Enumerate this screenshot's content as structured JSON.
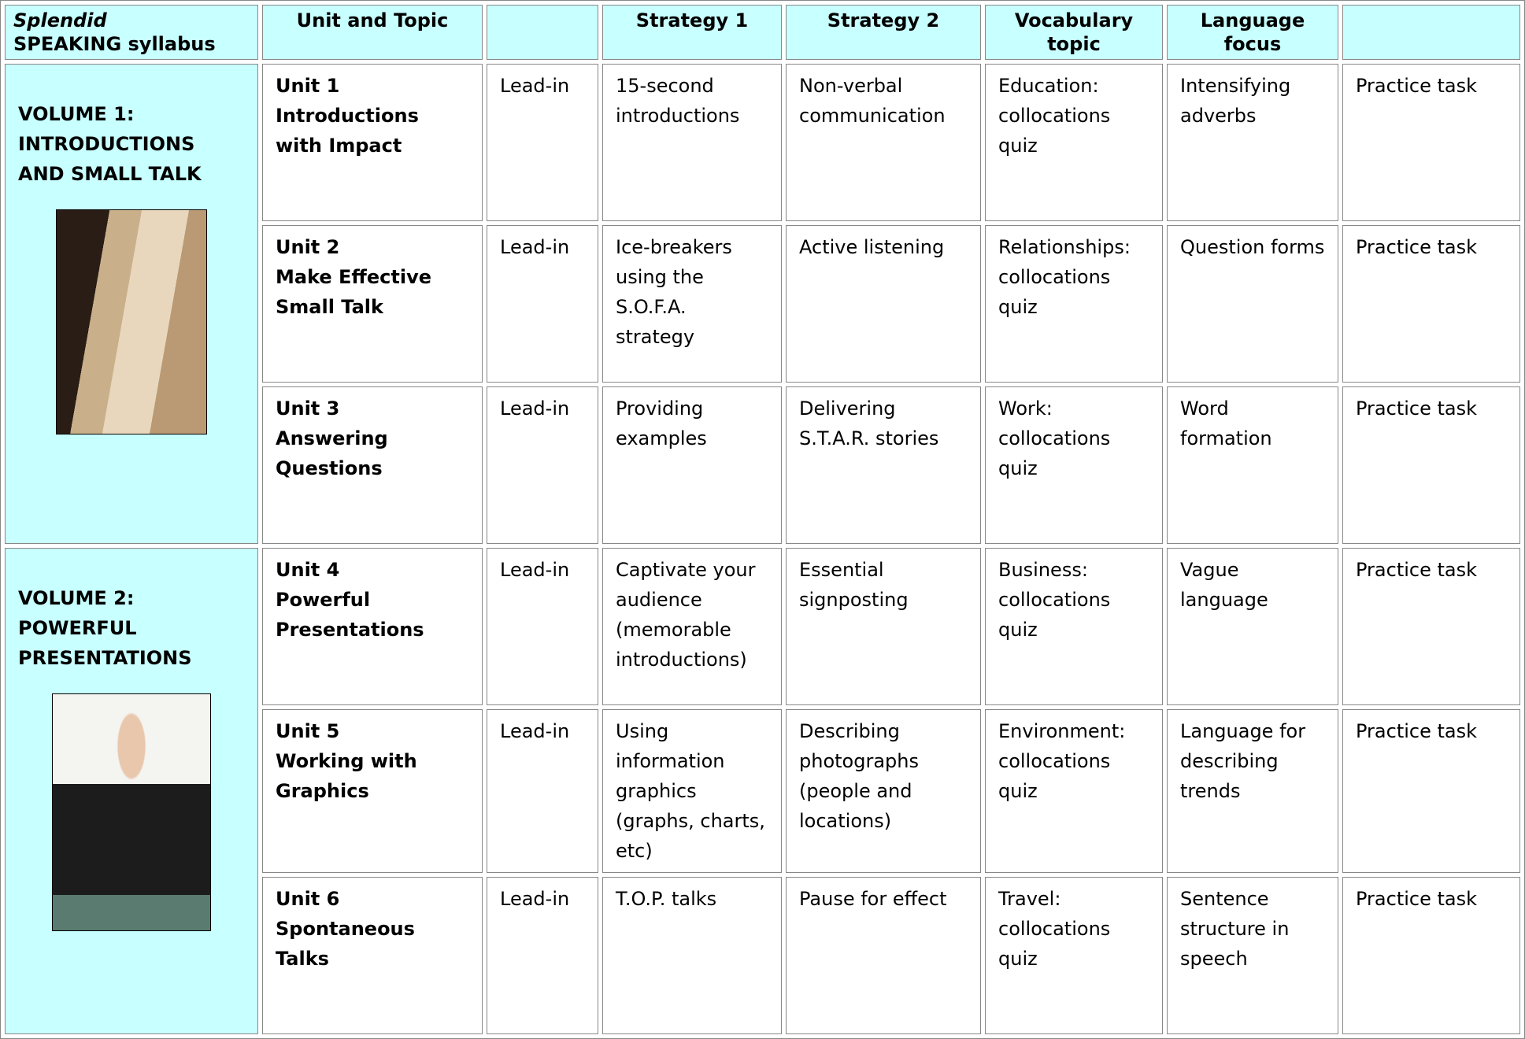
{
  "table": {
    "header": {
      "brand": "Splendid",
      "title": "SPEAKING syllabus",
      "columns": [
        "Unit and Topic",
        "Strategy 1",
        "Strategy 2",
        "Vocabulary topic",
        "Language focus"
      ]
    },
    "volumes": [
      {
        "label": "VOLUME 1: INTRODUCTIONS AND SMALL TALK",
        "units": [
          {
            "unit": "Unit 1",
            "topic": "Introductions with Impact",
            "lead": "Lead-in",
            "strategy_1": "15-second introductions",
            "strategy_2": "Non-verbal communication",
            "vocabulary": "Education: collocations quiz",
            "language": "Intensifying adverbs",
            "task": "Practice task"
          },
          {
            "unit": "Unit 2",
            "topic": "Make Effective Small Talk",
            "lead": "Lead-in",
            "strategy_1": "Ice-breakers using the S.O.F.A. strategy",
            "strategy_2": "Active listening",
            "vocabulary": "Relationships: collocations quiz",
            "language": "Question forms",
            "task": "Practice task"
          },
          {
            "unit": "Unit 3",
            "topic": "Answering Questions",
            "lead": "Lead-in",
            "strategy_1": "Providing examples",
            "strategy_2": "Delivering S.T.A.R. stories",
            "vocabulary": "Work: collocations quiz",
            "language": "Word formation",
            "task": "Practice task"
          }
        ]
      },
      {
        "label": "VOLUME 2: POWERFUL PRESENTATIONS",
        "units": [
          {
            "unit": "Unit 4",
            "topic": "Powerful Presentations",
            "lead": "Lead-in",
            "strategy_1": "Captivate your audience (memorable introductions)",
            "strategy_2": "Essential signposting",
            "vocabulary": "Business: collocations quiz",
            "language": "Vague language",
            "task": "Practice task"
          },
          {
            "unit": "Unit 5",
            "topic": "Working with Graphics",
            "lead": "Lead-in",
            "strategy_1": "Using information graphics (graphs, charts, etc)",
            "strategy_2": "Describing photographs (people and locations)",
            "vocabulary": "Environment: collocations quiz",
            "language": "Language for describing trends",
            "task": "Practice task"
          },
          {
            "unit": "Unit 6",
            "topic": "Spontaneous Talks",
            "lead": "Lead-in",
            "strategy_1": "T.O.P. talks",
            "strategy_2": "Pause for effect",
            "vocabulary": "Travel: collocations quiz",
            "language": "Sentence structure in speech",
            "task": "Practice task"
          }
        ]
      }
    ]
  }
}
